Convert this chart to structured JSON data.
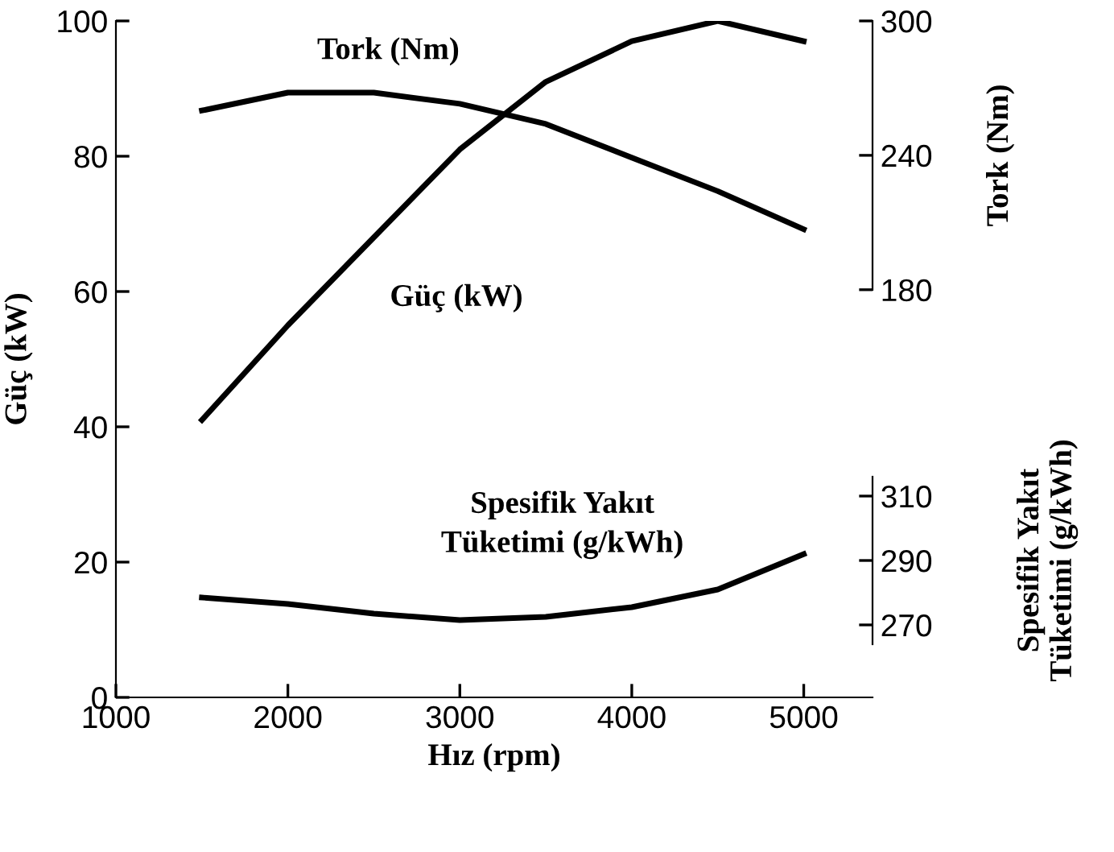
{
  "chart_data": {
    "type": "line",
    "xlabel": "Hız (rpm)",
    "ylabel": "Güç (kW)",
    "y2label": "Tork (Nm)",
    "y3label": "Spesifik Yakıt\nTüketimi (g/kWh)",
    "x": [
      1500,
      2000,
      2500,
      3000,
      3500,
      4000,
      4500,
      5000
    ],
    "series": [
      {
        "color": "#000000",
        "values": [
          41,
          55,
          68,
          81,
          91,
          97,
          100,
          97
        ]
      },
      {
        "color": "#000000",
        "axis": "y2",
        "values": [
          260,
          268,
          268,
          263,
          254,
          239,
          224,
          207
        ]
      },
      {
        "color": "#000000",
        "axis": "y3",
        "values": [
          278.5,
          276.5,
          273.5,
          271.5,
          272.5,
          275.5,
          281,
          292
        ]
      }
    ],
    "xlim": [
      1000,
      5400
    ],
    "xticks": [
      1000,
      2000,
      3000,
      4000,
      5000
    ],
    "ylim": [
      0,
      100
    ],
    "yticks": [
      0,
      20,
      40,
      60,
      80,
      100
    ],
    "y2lim": [
      -2,
      300
    ],
    "y2ticks": [
      180,
      240,
      300
    ],
    "y3lim": [
      247.5,
      457.5
    ],
    "y3ticks": [
      270,
      290,
      310
    ],
    "annotations": [
      "Tork (Nm)",
      "Güç (kW)",
      "Spesifik Yakıt\nTüketimi (g/kWh)"
    ],
    "grid": false,
    "legend": false,
    "marker": "none",
    "line_style": "solid"
  }
}
